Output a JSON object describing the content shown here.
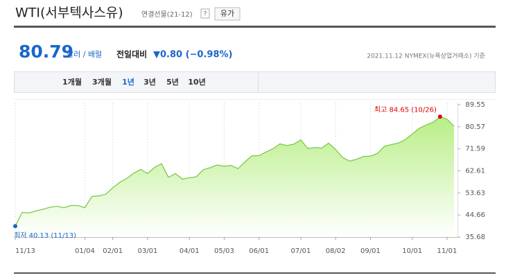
{
  "header": {
    "title": "WTI(서부텍사스유)",
    "subtitle": "연결선물(21-12)",
    "help": "?",
    "button": "유가"
  },
  "quote": {
    "price": "80.79",
    "unit": "달러 / 배럴",
    "change_label": "전일대비",
    "change": "▼0.80 (−0.98%)",
    "source": "2021.11.12 NYMEX(뉴욕상업거래소) 기준"
  },
  "tabs": [
    "1개월",
    "3개월",
    "1년",
    "3년",
    "5년",
    "10년"
  ],
  "selected_tab": "1년",
  "chart_data": {
    "type": "area",
    "categories": [
      "11/13",
      null,
      null,
      null,
      null,
      null,
      null,
      null,
      null,
      null,
      "01/04",
      null,
      null,
      null,
      "02/01",
      null,
      null,
      null,
      null,
      "03/01",
      null,
      null,
      null,
      null,
      null,
      "04/01",
      null,
      null,
      null,
      null,
      "05/03",
      null,
      null,
      null,
      null,
      "06/01",
      null,
      null,
      null,
      null,
      null,
      "07/01",
      null,
      null,
      null,
      null,
      "08/02",
      null,
      null,
      null,
      null,
      "09/01",
      null,
      null,
      null,
      null,
      null,
      "10/01",
      null,
      null,
      null,
      null,
      "11/01",
      null
    ],
    "values": [
      40.13,
      45.7,
      45.5,
      46.3,
      47.0,
      47.8,
      48.2,
      47.6,
      48.5,
      48.5,
      47.6,
      52.2,
      52.4,
      53.1,
      55.7,
      57.9,
      59.5,
      61.6,
      63.2,
      61.5,
      64.0,
      65.5,
      60.0,
      61.5,
      59.3,
      59.8,
      60.2,
      63.1,
      63.9,
      65.0,
      64.5,
      64.8,
      63.5,
      66.3,
      68.8,
      68.8,
      70.3,
      71.6,
      73.6,
      72.9,
      73.5,
      75.2,
      71.7,
      72.1,
      71.9,
      73.9,
      71.3,
      68.1,
      66.6,
      67.3,
      68.5,
      68.6,
      69.7,
      72.6,
      73.3,
      73.9,
      75.3,
      77.6,
      79.9,
      81.3,
      82.4,
      84.65,
      83.6,
      80.79
    ],
    "color": "#7cc94a",
    "max_color": "#e00000",
    "min_color": "#1a66cc",
    "max_label": "최고 84.65 (10/26)",
    "min_label": "최저 40.13 (11/13)",
    "ylim": [
      35.68,
      89.55
    ],
    "yticks": [
      35.68,
      44.66,
      53.63,
      62.61,
      71.59,
      80.57,
      89.55
    ],
    "grid": "vertical"
  }
}
